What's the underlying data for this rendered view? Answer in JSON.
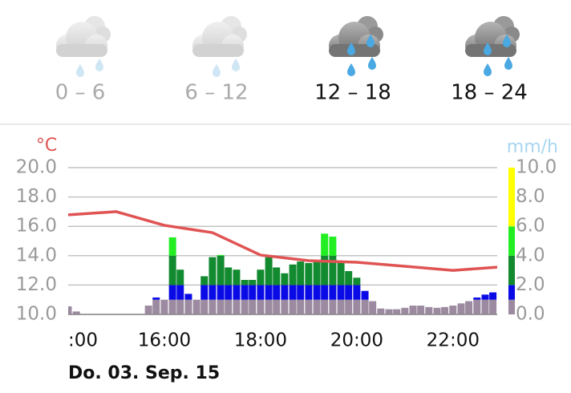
{
  "header": {
    "periods": [
      {
        "label": "0 – 6",
        "active": false
      },
      {
        "label": "6 – 12",
        "active": false
      },
      {
        "label": "12 – 18",
        "active": true
      },
      {
        "label": "18 – 24",
        "active": true
      }
    ]
  },
  "chart_data": {
    "type": "combo",
    "y_unit": "°C",
    "y2_unit": "mm/h",
    "xlabel": "Do. 03. Sep. 15",
    "grid": true,
    "xlim": [
      14,
      22.92
    ],
    "xticks": [
      {
        "value": 14,
        "label": ":00"
      },
      {
        "value": 16,
        "label": "16:00"
      },
      {
        "value": 18,
        "label": "18:00"
      },
      {
        "value": 20,
        "label": "20:00"
      },
      {
        "value": 22,
        "label": "22:00"
      }
    ],
    "ylim": [
      10,
      20
    ],
    "yticks": [
      {
        "value": 10,
        "label": "10.0"
      },
      {
        "value": 12,
        "label": "12.0"
      },
      {
        "value": 14,
        "label": "14.0"
      },
      {
        "value": 16,
        "label": "16.0"
      },
      {
        "value": 18,
        "label": "18.0"
      },
      {
        "value": 20,
        "label": "20.0"
      }
    ],
    "y2lim": [
      0,
      10
    ],
    "y2ticks": [
      {
        "value": 0,
        "label": "0.0"
      },
      {
        "value": 2,
        "label": "2.0"
      },
      {
        "value": 4,
        "label": "4.0"
      },
      {
        "value": 6,
        "label": "6.0"
      },
      {
        "value": 8,
        "label": "8.0"
      },
      {
        "value": 10,
        "label": "10.0"
      }
    ],
    "series": [
      {
        "type": "line",
        "color": "#e05353",
        "x": [
          14,
          15,
          16,
          17,
          18,
          19,
          20,
          21,
          22,
          22.92
        ],
        "values": [
          16.78,
          17.0,
          16.07,
          15.57,
          14.04,
          13.66,
          13.55,
          13.28,
          13.0,
          13.22
        ]
      },
      {
        "type": "bar",
        "axis": "y2",
        "color_bands": [
          {
            "upto": 1,
            "color": "#9c8aa0"
          },
          {
            "upto": 2,
            "color": "#0a0ae6"
          },
          {
            "upto": 4,
            "color": "#128a30"
          },
          {
            "upto": 6,
            "color": "#22ee22"
          },
          {
            "upto": 10,
            "color": "#ffff00"
          }
        ],
        "x": [
          14,
          14.17,
          14.33,
          14.5,
          14.67,
          14.83,
          15,
          15.17,
          15.33,
          15.5,
          15.67,
          15.83,
          16,
          16.17,
          16.33,
          16.5,
          16.67,
          16.83,
          17,
          17.17,
          17.33,
          17.5,
          17.67,
          17.83,
          18,
          18.17,
          18.33,
          18.5,
          18.67,
          18.83,
          19,
          19.17,
          19.33,
          19.5,
          19.67,
          19.83,
          20,
          20.17,
          20.33,
          20.5,
          20.67,
          20.83,
          21,
          21.17,
          21.33,
          21.5,
          21.67,
          21.83,
          22,
          22.17,
          22.33,
          22.5,
          22.67,
          22.83
        ],
        "values": [
          0.55,
          0.2,
          0,
          0,
          0,
          0,
          0,
          0,
          0,
          0,
          0.6,
          1.15,
          1.0,
          5.25,
          3.05,
          1.4,
          1.0,
          2.6,
          3.9,
          4.05,
          3.2,
          3.05,
          2.35,
          2.35,
          3.05,
          3.9,
          3.2,
          2.8,
          3.4,
          3.6,
          3.5,
          3.6,
          5.5,
          5.3,
          3.5,
          2.95,
          2.5,
          1.6,
          0.9,
          0.4,
          0.35,
          0.35,
          0.45,
          0.6,
          0.6,
          0.5,
          0.45,
          0.5,
          0.6,
          0.75,
          0.9,
          1.15,
          1.35,
          1.5
        ]
      }
    ]
  }
}
